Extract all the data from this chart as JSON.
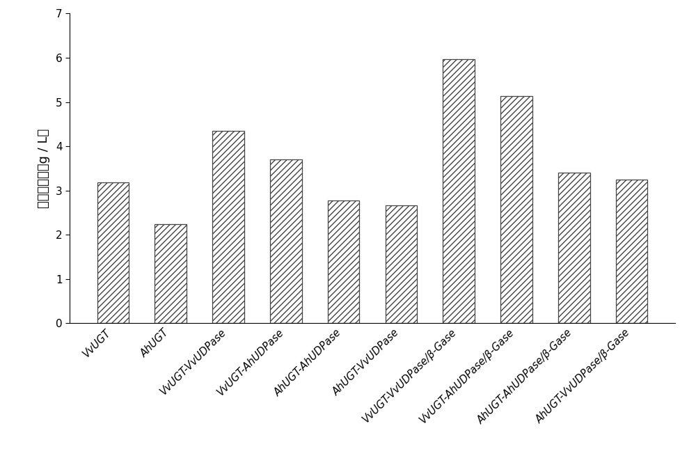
{
  "categories": [
    "VvUGT",
    "AhUGT",
    "VvUGT-VvUDPase",
    "VvUGT-AhUDPase",
    "AhUGT-AhUDPase",
    "AhUGT-VvUDPase",
    "VvUGT-VvUDPase/β-Gase",
    "VvUGT-AhUDPase/β-Gase",
    "AhUGT-AhUDPase/β-Gase",
    "AhUGT-VvUDPase/β-Gase"
  ],
  "values": [
    3.18,
    2.24,
    4.35,
    3.7,
    2.78,
    2.67,
    5.97,
    5.13,
    3.4,
    3.25
  ],
  "ylabel": "白藜芦醇苷（g / L）",
  "ylim": [
    0,
    7
  ],
  "yticks": [
    0,
    1,
    2,
    3,
    4,
    5,
    6,
    7
  ],
  "bar_color": "white",
  "hatch": "////",
  "edgecolor": "#444444",
  "bar_width": 0.55,
  "figsize": [
    10.0,
    6.45
  ],
  "dpi": 100
}
